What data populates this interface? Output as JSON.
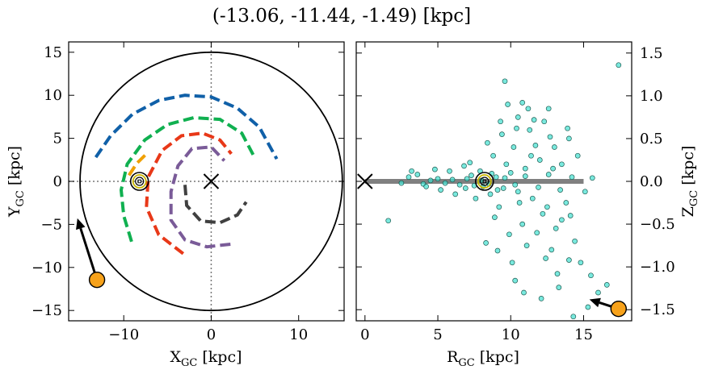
{
  "chart_data": [
    {
      "type": "line",
      "title": "(-13.06, -11.44, -1.49) [kpc]",
      "xlabel": "X",
      "xlabel_sub": "GC",
      "xlabel_unit": " [kpc]",
      "ylabel": "Y",
      "ylabel_sub": "GC",
      "ylabel_unit": " [kpc]",
      "xlim": [
        -16.3,
        15.2
      ],
      "ylim": [
        -16.2,
        16.2
      ],
      "xticks": [
        -10,
        0,
        10
      ],
      "yticks": [
        -15,
        -10,
        -5,
        0,
        5,
        10,
        15
      ],
      "xtick_labels": [
        "−10",
        "0",
        "10"
      ],
      "ytick_labels": [
        "−15",
        "−10",
        "−5",
        "0",
        "5",
        "10",
        "15"
      ],
      "grid": false,
      "boundary_circle_radius": 15,
      "galactic_center": [
        0,
        0
      ],
      "sun_position": [
        -8.2,
        0
      ],
      "source_position": [
        -13.06,
        -11.44
      ],
      "arrow": {
        "from": [
          -13.06,
          -11.44
        ],
        "to": [
          -15.3,
          -4.3
        ]
      },
      "series": [
        {
          "color": "#1060a8",
          "values": [
            [
              -13.2,
              2.8
            ],
            [
              -11.5,
              5.3
            ],
            [
              -9,
              7.8
            ],
            [
              -6,
              9.4
            ],
            [
              -3,
              10
            ],
            [
              0,
              9.8
            ],
            [
              3,
              8.5
            ],
            [
              5.5,
              6.3
            ],
            [
              7.5,
              2.6
            ]
          ]
        },
        {
          "color": "#10b050",
          "values": [
            [
              -9.1,
              -7
            ],
            [
              -10,
              -4
            ],
            [
              -10.3,
              -1
            ],
            [
              -9.6,
              2
            ],
            [
              -7.6,
              4.8
            ],
            [
              -5,
              6.6
            ],
            [
              -2,
              7.4
            ],
            [
              1,
              7.2
            ],
            [
              3.5,
              5.6
            ],
            [
              5,
              2.7
            ]
          ]
        },
        {
          "color": "#f0a000",
          "values": [
            [
              -9.4,
              0.7
            ],
            [
              -8.5,
              2.1
            ],
            [
              -7.3,
              3.3
            ]
          ]
        },
        {
          "color": "#e83818",
          "values": [
            [
              -3.2,
              -8.4
            ],
            [
              -6,
              -6.2
            ],
            [
              -7.4,
              -3
            ],
            [
              -7.2,
              0.5
            ],
            [
              -5.6,
              3.6
            ],
            [
              -3.4,
              5.3
            ],
            [
              -1,
              5.6
            ],
            [
              1,
              4.8
            ],
            [
              2.3,
              3.2
            ]
          ]
        },
        {
          "color": "#7a5b98",
          "values": [
            [
              2.2,
              -7.3
            ],
            [
              -0.5,
              -7.6
            ],
            [
              -3,
              -6.8
            ],
            [
              -4.6,
              -4.5
            ],
            [
              -4.6,
              -1.2
            ],
            [
              -3.8,
              1.8
            ],
            [
              -2.2,
              3.8
            ],
            [
              0,
              4
            ],
            [
              1.5,
              2.4
            ]
          ]
        },
        {
          "color": "#404040",
          "values": [
            [
              -3,
              -0.4
            ],
            [
              -2.8,
              -2.8
            ],
            [
              -1.2,
              -4.6
            ],
            [
              1,
              -4.8
            ],
            [
              3,
              -3.9
            ],
            [
              4,
              -2.4
            ]
          ]
        }
      ]
    },
    {
      "type": "scatter",
      "xlabel": "R",
      "xlabel_sub": "GC",
      "xlabel_unit": " [kpc]",
      "ylabel": "Z",
      "ylabel_sub": "GC",
      "ylabel_unit": " [kpc]",
      "xlim": [
        -0.6,
        18.3
      ],
      "ylim": [
        -1.63,
        1.63
      ],
      "xticks": [
        0,
        5,
        10,
        15
      ],
      "yticks": [
        -1.5,
        -1.0,
        -0.5,
        0.0,
        0.5,
        1.0,
        1.5
      ],
      "xtick_labels": [
        "0",
        "5",
        "10",
        "15"
      ],
      "ytick_labels": [
        "−1.5",
        "−1.0",
        "−0.5",
        "0.0",
        "0.5",
        "1.0",
        "1.5"
      ],
      "grid": false,
      "point_color": "#40e0d0",
      "disk_band": {
        "from": 0,
        "to": 15,
        "z": 0
      },
      "galactic_center": [
        0,
        0
      ],
      "sun_position": [
        8.2,
        0
      ],
      "source_position": [
        17.4,
        -1.49
      ],
      "arrow": {
        "from": [
          17.4,
          -1.49
        ],
        "to": [
          15.4,
          -1.38
        ]
      },
      "scatter_points": [
        [
          8,
          0.01
        ],
        [
          8.5,
          -0.03
        ],
        [
          9,
          0.05
        ],
        [
          9.5,
          -0.08
        ],
        [
          10,
          0.1
        ],
        [
          10.5,
          -0.12
        ],
        [
          11,
          0.15
        ],
        [
          11.5,
          -0.2
        ],
        [
          12,
          0.25
        ],
        [
          12.5,
          -0.3
        ],
        [
          13,
          0.4
        ],
        [
          13.5,
          -0.45
        ],
        [
          14,
          0.5
        ],
        [
          7,
          0.03
        ],
        [
          7.5,
          -0.05
        ],
        [
          6,
          0.02
        ],
        [
          6.5,
          -0.04
        ],
        [
          5,
          0.03
        ],
        [
          5.5,
          -0.02
        ],
        [
          4.5,
          0.01
        ],
        [
          4,
          -0.03
        ],
        [
          3,
          0.05
        ],
        [
          2.5,
          -0.02
        ],
        [
          8.8,
          0.3
        ],
        [
          9.2,
          -0.3
        ],
        [
          10.2,
          0.4
        ],
        [
          10.8,
          -0.5
        ],
        [
          11.3,
          0.6
        ],
        [
          11.8,
          -0.6
        ],
        [
          12.3,
          0.7
        ],
        [
          12.8,
          -0.8
        ],
        [
          9.8,
          0.9
        ],
        [
          10.5,
          0.75
        ],
        [
          9.6,
          1.17
        ],
        [
          10.8,
          0.92
        ],
        [
          11.6,
          0.72
        ],
        [
          12.6,
          0.85
        ],
        [
          13.5,
          0.2
        ],
        [
          13.8,
          -0.25
        ],
        [
          14.4,
          -0.7
        ],
        [
          14.8,
          -0.95
        ],
        [
          15.5,
          -1.1
        ],
        [
          16,
          -1.3
        ],
        [
          16.6,
          -1.21
        ],
        [
          15.3,
          -1.47
        ],
        [
          14.3,
          -1.58
        ],
        [
          13.3,
          -1.24
        ],
        [
          12.1,
          -1.37
        ],
        [
          10.9,
          -1.3
        ],
        [
          10.3,
          -1.16
        ],
        [
          9.1,
          -0.81
        ],
        [
          8.3,
          -0.72
        ],
        [
          13.2,
          -1.08
        ],
        [
          14,
          -0.92
        ],
        [
          17.4,
          1.36
        ],
        [
          1.6,
          -0.46
        ],
        [
          3.2,
          0.12
        ],
        [
          7.2,
          0.22
        ],
        [
          7.6,
          -0.2
        ],
        [
          6.8,
          0.18
        ],
        [
          6.2,
          -0.15
        ],
        [
          8.4,
          0.45
        ],
        [
          8.9,
          -0.42
        ],
        [
          9.4,
          0.55
        ],
        [
          9.9,
          -0.62
        ],
        [
          10.4,
          0.62
        ],
        [
          11.1,
          -0.75
        ],
        [
          11.7,
          0.42
        ],
        [
          12.2,
          -0.38
        ],
        [
          12.9,
          0.15
        ],
        [
          13.4,
          -0.1
        ],
        [
          14.2,
          0.05
        ],
        [
          14.6,
          0.3
        ],
        [
          5.8,
          0.12
        ],
        [
          5.2,
          -0.1
        ],
        [
          4.8,
          0.14
        ],
        [
          4.2,
          -0.06
        ],
        [
          3.6,
          0.08
        ],
        [
          9.7,
          0.2
        ],
        [
          10.6,
          -0.25
        ],
        [
          11.4,
          0.3
        ],
        [
          8.6,
          -0.15
        ],
        [
          7.9,
          0.12
        ],
        [
          12.7,
          0.52
        ],
        [
          13.1,
          -0.55
        ],
        [
          12.4,
          -0.9
        ],
        [
          11.2,
          0.85
        ],
        [
          10.1,
          -0.95
        ],
        [
          9.3,
          0.7
        ],
        [
          13.9,
          0.62
        ],
        [
          14.1,
          -0.4
        ],
        [
          15.1,
          -0.12
        ],
        [
          15.6,
          0.04
        ],
        [
          6.9,
          -0.08
        ],
        [
          7.3,
          0.07
        ],
        [
          8.1,
          -0.06
        ],
        [
          8.7,
          0.09
        ],
        [
          9.1,
          -0.1
        ],
        [
          9.6,
          0.04
        ],
        [
          10.3,
          -0.04
        ],
        [
          11,
          0.06
        ],
        [
          11.9,
          -0.07
        ],
        [
          12.6,
          0.08
        ]
      ]
    }
  ]
}
